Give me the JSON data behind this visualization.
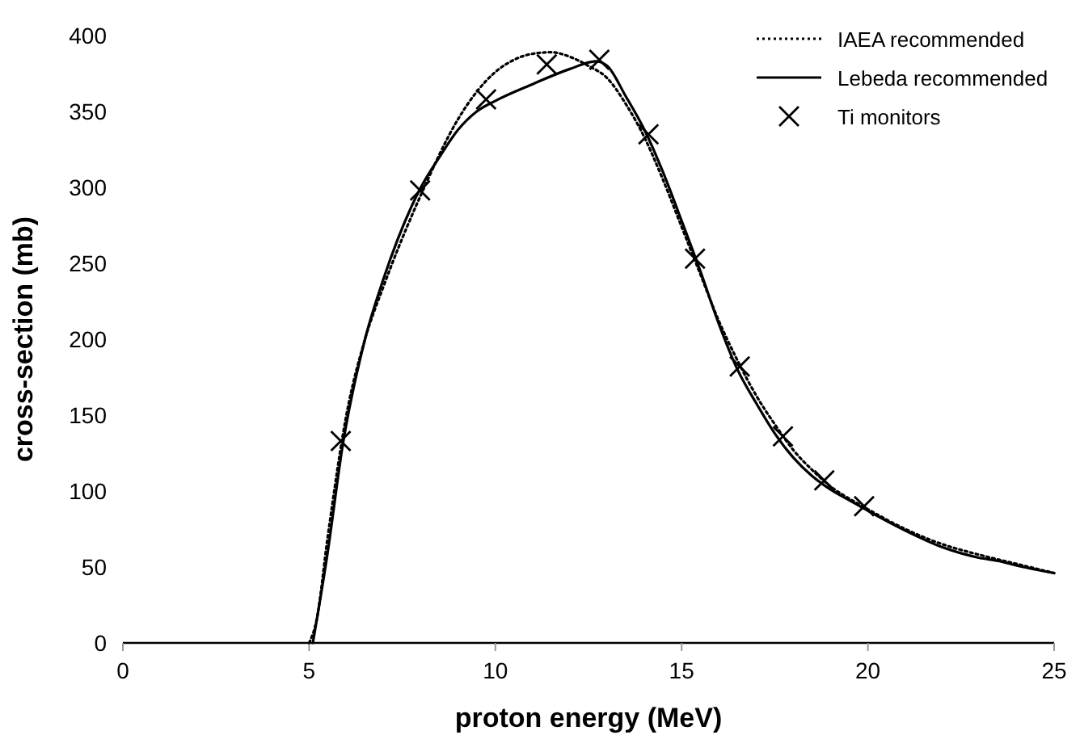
{
  "chart_data": {
    "type": "line",
    "xlabel": "proton energy (MeV)",
    "ylabel": "cross-section (mb)",
    "xlim": [
      0,
      25
    ],
    "xticks": [
      0,
      5,
      10,
      15,
      20,
      25
    ],
    "ylim": [
      0,
      400
    ],
    "yticks": [
      0,
      50,
      100,
      150,
      200,
      250,
      300,
      350,
      400
    ],
    "grid": false,
    "legend": "top right",
    "series": [
      {
        "name": "IAEA recommended",
        "color": "#000000",
        "line_style": "dotted",
        "marker": "none",
        "x": [
          5,
          5.2,
          5.5,
          6,
          6.5,
          7,
          8,
          9,
          9.5,
          10,
          10.5,
          11,
          11.5,
          12,
          12.5,
          13,
          13.5,
          14,
          14.5,
          15,
          15.5,
          16,
          16.5,
          17,
          17.5,
          18,
          18.5,
          19,
          19.5,
          20,
          21,
          22,
          23,
          24,
          25
        ],
        "values": [
          0,
          15,
          70,
          150,
          200,
          235,
          295,
          345,
          363,
          376,
          384,
          388,
          389,
          386,
          380,
          372,
          355,
          333,
          305,
          274,
          243,
          212,
          186,
          163,
          144,
          127,
          114,
          103,
          95,
          88,
          75,
          65,
          58,
          52,
          46
        ]
      },
      {
        "name": "Lebeda recommended",
        "color": "#000000",
        "line_style": "solid",
        "marker": "none",
        "x": [
          5.1,
          5.5,
          5.9,
          6.5,
          7,
          8,
          8.5,
          9,
          9.5,
          10,
          11,
          12,
          12.7,
          13,
          13.5,
          14,
          14.5,
          15,
          15.5,
          16,
          16.5,
          17,
          17.5,
          18,
          18.5,
          19,
          19.5,
          20,
          21,
          22,
          23,
          23.5,
          24,
          25
        ],
        "values": [
          0,
          60,
          130,
          200,
          240,
          300,
          320,
          338,
          350,
          357,
          368,
          378,
          383,
          380,
          360,
          338,
          310,
          278,
          245,
          210,
          180,
          158,
          138,
          122,
          110,
          101,
          94,
          87,
          74,
          63,
          56,
          54,
          51,
          46
        ]
      },
      {
        "name": "Ti monitors",
        "type": "scatter",
        "color": "#000000",
        "marker": "cross",
        "x": [
          5.85,
          7.98,
          9.75,
          11.38,
          12.79,
          14.11,
          15.36,
          16.56,
          17.72,
          18.83,
          19.9
        ],
        "values": [
          133,
          298,
          358,
          381,
          384,
          335,
          253,
          182,
          136,
          107,
          90
        ]
      }
    ]
  }
}
